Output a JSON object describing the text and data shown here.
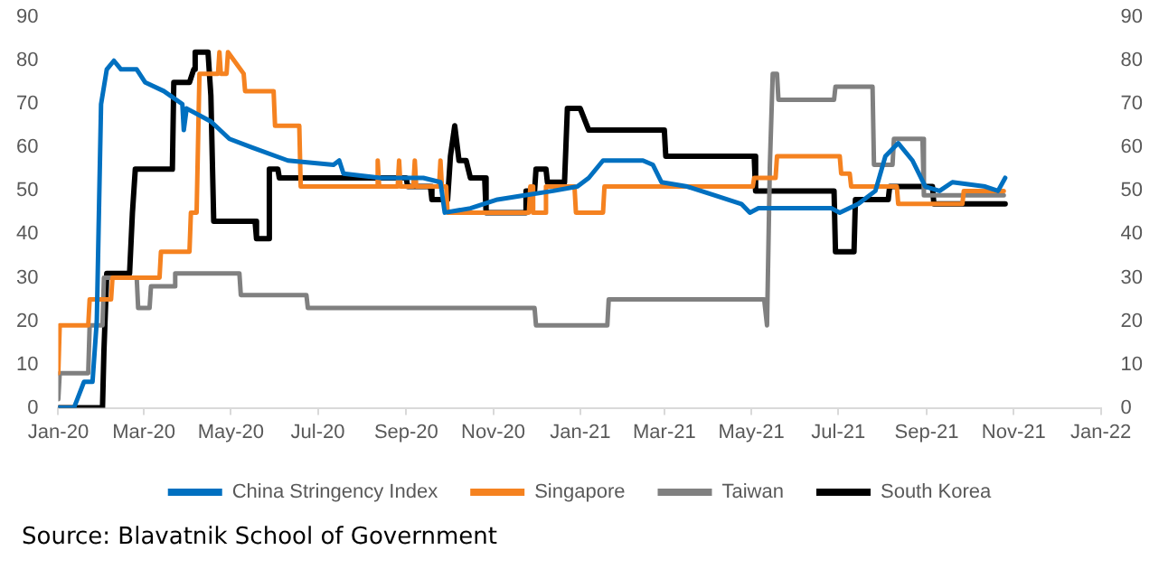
{
  "chart_data": {
    "type": "line",
    "annotations": [
      "Source: Blavatnik School of Government"
    ],
    "xlim": [
      "2020-01-01",
      "2022-01-01"
    ],
    "xticks": [
      {
        "value": "2020-01-01",
        "label": "Jan-20"
      },
      {
        "value": "2020-03-01",
        "label": "Mar-20"
      },
      {
        "value": "2020-05-01",
        "label": "May-20"
      },
      {
        "value": "2020-07-01",
        "label": "Jul-20"
      },
      {
        "value": "2020-09-01",
        "label": "Sep-20"
      },
      {
        "value": "2020-11-01",
        "label": "Nov-20"
      },
      {
        "value": "2021-01-01",
        "label": "Jan-21"
      },
      {
        "value": "2021-03-01",
        "label": "Mar-21"
      },
      {
        "value": "2021-05-01",
        "label": "May-21"
      },
      {
        "value": "2021-07-01",
        "label": "Jul-21"
      },
      {
        "value": "2021-09-01",
        "label": "Sep-21"
      },
      {
        "value": "2021-11-01",
        "label": "Nov-21"
      },
      {
        "value": "2022-01-01",
        "label": "Jan-22"
      }
    ],
    "ylim": [
      0,
      90
    ],
    "yticks": [
      0,
      10,
      20,
      30,
      40,
      50,
      60,
      70,
      80,
      90
    ],
    "y2lim": [
      0,
      90
    ],
    "y2ticks": [
      0,
      10,
      20,
      30,
      40,
      50,
      60,
      70,
      80,
      90
    ],
    "grid": false,
    "legend": "bottom",
    "marker": "none",
    "line_style": "solid",
    "series": [
      {
        "name": "China Stringency Index",
        "color": "#0070c0",
        "x": [
          "2020-01-01",
          "2020-01-12",
          "2020-01-19",
          "2020-01-25",
          "2020-01-28",
          "2020-01-31",
          "2020-02-04",
          "2020-02-09",
          "2020-02-14",
          "2020-02-25",
          "2020-03-02",
          "2020-03-15",
          "2020-03-28",
          "2020-03-29",
          "2020-03-31",
          "2020-04-17",
          "2020-04-30",
          "2020-05-16",
          "2020-06-10",
          "2020-07-12",
          "2020-07-16",
          "2020-07-19",
          "2020-08-14",
          "2020-09-13",
          "2020-09-25",
          "2020-09-28",
          "2020-10-16",
          "2020-11-04",
          "2020-11-23",
          "2020-12-13",
          "2020-12-30",
          "2021-01-07",
          "2021-01-17",
          "2021-02-14",
          "2021-02-21",
          "2021-02-27",
          "2021-03-17",
          "2021-04-05",
          "2021-04-24",
          "2021-04-30",
          "2021-05-06",
          "2021-05-31",
          "2021-06-26",
          "2021-07-02",
          "2021-07-15",
          "2021-07-27",
          "2021-08-03",
          "2021-08-12",
          "2021-08-22",
          "2021-08-31",
          "2021-09-10",
          "2021-09-19",
          "2021-10-12",
          "2021-10-21",
          "2021-10-26"
        ],
        "values": [
          0,
          0,
          6,
          6,
          20,
          70,
          78,
          80,
          78,
          78,
          75,
          73,
          70,
          64,
          69,
          66,
          62,
          60,
          57,
          56,
          57,
          54,
          53,
          53,
          52,
          45,
          46,
          48,
          49,
          50,
          51,
          53,
          57,
          57,
          56,
          52,
          51,
          49,
          47,
          45,
          46,
          46,
          46,
          45,
          47,
          50,
          58,
          61,
          57,
          51,
          50,
          52,
          51,
          50,
          53
        ]
      },
      {
        "name": "Singapore",
        "color": "#f58220",
        "x": [
          "2020-01-01",
          "2020-01-02",
          "2020-01-22",
          "2020-01-23",
          "2020-02-07",
          "2020-02-08",
          "2020-03-12",
          "2020-03-13",
          "2020-04-02",
          "2020-04-03",
          "2020-04-07",
          "2020-04-09",
          "2020-04-22",
          "2020-04-23",
          "2020-04-24",
          "2020-04-28",
          "2020-04-29",
          "2020-05-10",
          "2020-05-11",
          "2020-05-31",
          "2020-06-01",
          "2020-06-18",
          "2020-06-19",
          "2020-08-11",
          "2020-08-12",
          "2020-08-13",
          "2020-08-26",
          "2020-08-27",
          "2020-08-28",
          "2020-09-06",
          "2020-09-07",
          "2020-09-08",
          "2020-09-24",
          "2020-09-25",
          "2020-09-26",
          "2020-09-29",
          "2020-09-30",
          "2020-11-26",
          "2020-11-27",
          "2020-11-28",
          "2020-11-29",
          "2020-12-07",
          "2020-12-08",
          "2020-12-28",
          "2020-12-29",
          "2021-01-17",
          "2021-01-18",
          "2021-05-02",
          "2021-05-03",
          "2021-05-18",
          "2021-05-19",
          "2021-07-02",
          "2021-07-03",
          "2021-07-09",
          "2021-07-10",
          "2021-08-11",
          "2021-08-12",
          "2021-09-26",
          "2021-09-27",
          "2021-10-25"
        ],
        "values": [
          8,
          19,
          19,
          25,
          25,
          30,
          30,
          36,
          36,
          45,
          45,
          77,
          77,
          82,
          77,
          77,
          82,
          77,
          73,
          73,
          65,
          65,
          51,
          51,
          57,
          51,
          51,
          57,
          51,
          51,
          57,
          51,
          51,
          57,
          51,
          51,
          45,
          45,
          51,
          51,
          45,
          45,
          51,
          51,
          45,
          45,
          51,
          51,
          53,
          53,
          58,
          58,
          54,
          54,
          51,
          51,
          47,
          47,
          50,
          50
        ]
      },
      {
        "name": "Taiwan",
        "color": "#808080",
        "x": [
          "2020-01-01",
          "2020-01-02",
          "2020-01-22",
          "2020-01-23",
          "2020-02-01",
          "2020-02-02",
          "2020-02-25",
          "2020-02-26",
          "2020-03-05",
          "2020-03-06",
          "2020-03-22",
          "2020-03-23",
          "2020-05-07",
          "2020-05-08",
          "2020-06-23",
          "2020-06-24",
          "2020-11-30",
          "2020-12-01",
          "2021-01-20",
          "2021-01-21",
          "2021-05-10",
          "2021-05-12",
          "2021-05-14",
          "2021-05-16",
          "2021-05-19",
          "2021-05-20",
          "2021-06-28",
          "2021-06-29",
          "2021-07-25",
          "2021-07-26",
          "2021-08-08",
          "2021-08-09",
          "2021-08-29",
          "2021-08-30",
          "2021-10-25"
        ],
        "values": [
          2,
          8,
          8,
          19,
          19,
          30,
          30,
          23,
          23,
          28,
          28,
          31,
          31,
          26,
          26,
          23,
          23,
          19,
          19,
          25,
          25,
          19,
          56,
          77,
          77,
          71,
          71,
          74,
          74,
          56,
          56,
          62,
          62,
          49,
          49
        ]
      },
      {
        "name": "South Korea",
        "color": "#000000",
        "x": [
          "2020-01-01",
          "2020-02-01",
          "2020-02-02",
          "2020-02-04",
          "2020-02-20",
          "2020-02-22",
          "2020-02-24",
          "2020-03-21",
          "2020-03-22",
          "2020-04-02",
          "2020-04-05",
          "2020-04-06",
          "2020-04-15",
          "2020-04-17",
          "2020-04-19",
          "2020-05-18",
          "2020-05-19",
          "2020-05-27",
          "2020-05-28",
          "2020-06-03",
          "2020-06-04",
          "2020-09-01",
          "2020-09-02",
          "2020-09-18",
          "2020-09-19",
          "2020-09-30",
          "2020-10-02",
          "2020-10-05",
          "2020-10-08",
          "2020-10-13",
          "2020-10-16",
          "2020-10-26",
          "2020-10-27",
          "2020-11-23",
          "2020-11-24",
          "2020-11-30",
          "2020-12-01",
          "2020-12-08",
          "2020-12-09",
          "2020-12-21",
          "2020-12-23",
          "2021-01-01",
          "2021-01-07",
          "2021-03-01",
          "2021-03-02",
          "2021-05-03",
          "2021-05-04",
          "2021-06-28",
          "2021-06-29",
          "2021-07-12",
          "2021-07-13",
          "2021-08-05",
          "2021-08-06",
          "2021-09-05",
          "2021-09-06",
          "2021-10-26"
        ],
        "values": [
          0,
          0,
          13,
          31,
          31,
          45,
          55,
          55,
          75,
          75,
          78,
          82,
          82,
          72,
          43,
          43,
          39,
          39,
          55,
          55,
          53,
          53,
          51,
          51,
          48,
          48,
          58,
          65,
          57,
          57,
          53,
          53,
          45,
          45,
          50,
          50,
          55,
          55,
          52,
          52,
          69,
          69,
          64,
          64,
          58,
          58,
          50,
          50,
          36,
          36,
          48,
          48,
          51,
          51,
          47,
          47
        ]
      }
    ]
  }
}
